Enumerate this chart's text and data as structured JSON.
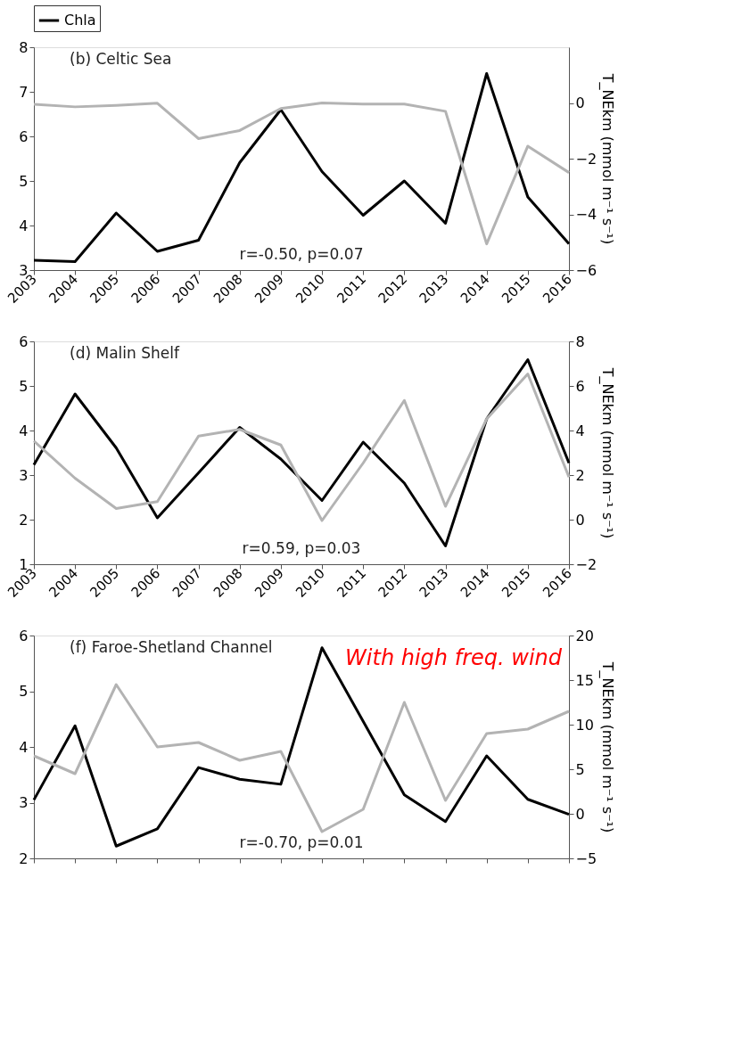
{
  "chart_data": [
    {
      "type": "line",
      "title": "(b) Celtic Sea",
      "y2label": "T_NEkm (mmol m⁻¹ s⁻¹)",
      "legend": "top",
      "categories": [
        "2003",
        "2004",
        "2005",
        "2006",
        "2007",
        "2008",
        "2009",
        "2010",
        "2011",
        "2012",
        "2013",
        "2014",
        "2015",
        "2016"
      ],
      "ylim": [
        3,
        8
      ],
      "yticks": [
        3,
        4,
        5,
        6,
        7,
        8
      ],
      "y2lim": [
        -6,
        2
      ],
      "y2ticks": [
        -6,
        -4,
        -2,
        0
      ],
      "series": [
        {
          "name": "Chla",
          "color": "#000000",
          "values": [
            3.22,
            3.19,
            4.28,
            3.42,
            3.67,
            5.41,
            6.6,
            5.21,
            4.23,
            5.0,
            4.05,
            7.41,
            4.64,
            3.59
          ]
        },
        {
          "color": "#b3b3b3",
          "axis": "y2",
          "values": [
            -0.05,
            -0.14,
            -0.09,
            -0.01,
            -1.28,
            -0.99,
            -0.2,
            0.0,
            -0.04,
            -0.04,
            -0.3,
            -5.06,
            -1.55,
            -2.5
          ]
        }
      ],
      "annotations": [
        "r=-0.50,  p=0.07"
      ]
    },
    {
      "type": "line",
      "title": "(d)  Malin Shelf",
      "y2label": "T_NEkm (mmol m⁻¹ s⁻¹)",
      "categories": [
        "2003",
        "2004",
        "2005",
        "2006",
        "2007",
        "2008",
        "2009",
        "2010",
        "2011",
        "2012",
        "2013",
        "2014",
        "2015",
        "2016"
      ],
      "ylim": [
        1,
        6
      ],
      "yticks": [
        1,
        2,
        3,
        4,
        5,
        6
      ],
      "y2lim": [
        -2,
        8
      ],
      "y2ticks": [
        -2,
        0,
        2,
        4,
        6,
        8
      ],
      "series": [
        {
          "color": "#000000",
          "values": [
            3.23,
            4.82,
            3.61,
            2.04,
            3.05,
            4.07,
            3.36,
            2.43,
            3.74,
            2.82,
            1.41,
            4.26,
            5.59,
            3.27
          ]
        },
        {
          "color": "#b3b3b3",
          "axis": "y2",
          "values": [
            3.53,
            1.86,
            0.5,
            0.81,
            3.75,
            4.05,
            3.35,
            -0.04,
            2.54,
            5.35,
            0.6,
            4.52,
            6.54,
            1.91
          ]
        }
      ],
      "annotations": [
        "r=0.59,  p=0.03"
      ]
    },
    {
      "type": "line",
      "title": "(f) Faroe-Shetland Channel",
      "y2label": "T_NEkm (mmol m⁻¹ s⁻¹)",
      "tick_labels": "y",
      "categories": [
        null,
        null,
        null,
        null,
        null,
        null,
        null,
        null,
        null,
        null,
        null,
        null,
        null,
        null
      ],
      "ylim": [
        2,
        6
      ],
      "yticks": [
        2,
        3,
        4,
        5,
        6
      ],
      "y2lim": [
        -5,
        20
      ],
      "y2ticks": [
        -5,
        0,
        5,
        10,
        15,
        20
      ],
      "series": [
        {
          "color": "#000000",
          "values": [
            3.05,
            4.38,
            2.22,
            2.53,
            3.63,
            3.42,
            3.33,
            5.78,
            4.46,
            3.14,
            2.66,
            3.84,
            3.06,
            2.79
          ]
        },
        {
          "color": "#b3b3b3",
          "axis": "y2",
          "values": [
            6.5,
            4.5,
            14.5,
            7.5,
            8,
            6,
            7,
            -2,
            0.5,
            12.5,
            1.5,
            9,
            9.5,
            11.5
          ]
        }
      ],
      "annotations": [
        "r=-0.70,  p=0.01",
        "With high freq. wind"
      ]
    }
  ]
}
